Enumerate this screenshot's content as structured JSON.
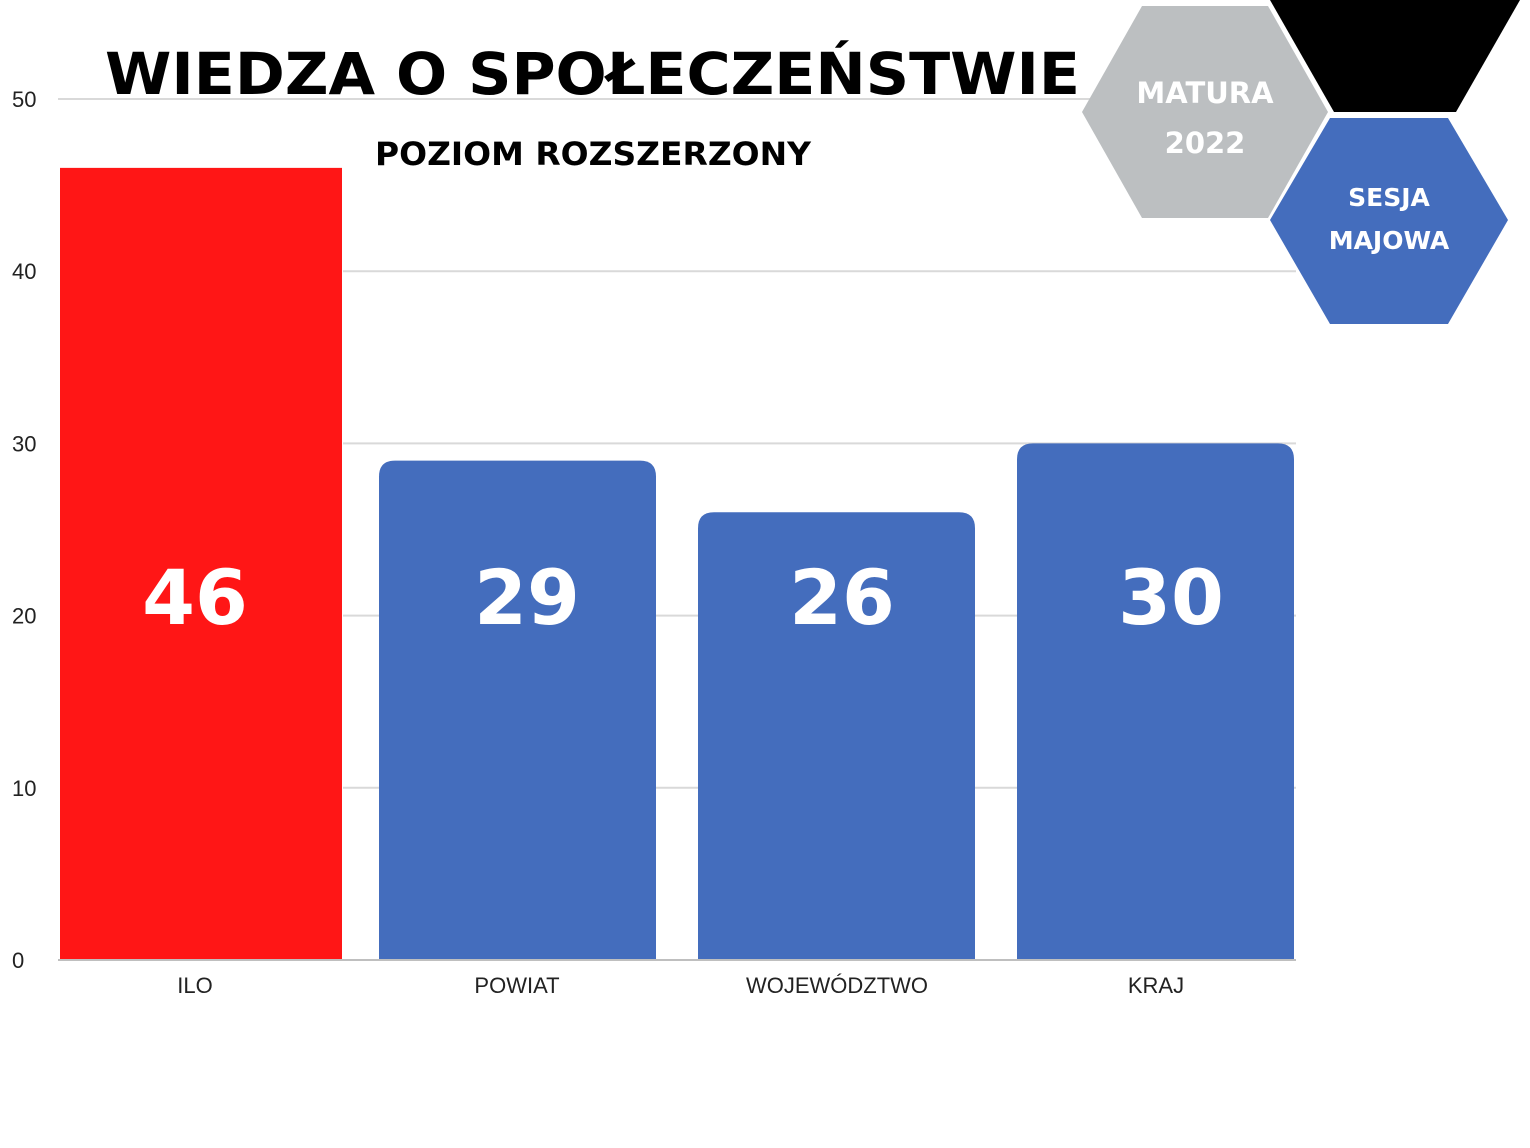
{
  "chart_data": {
    "type": "bar",
    "title": "WIEDZA O SPOŁECZEŃSTWIE",
    "subtitle": "POZIOM ROZSZERZONY",
    "categories": [
      "ILO",
      "POWIAT",
      "WOJEWÓDZTWO",
      "KRAJ"
    ],
    "values": [
      46,
      29,
      26,
      30
    ],
    "data_labels": [
      "46",
      "29",
      "26",
      "30"
    ],
    "bar_colors": [
      "#ff1616",
      "#446dbd",
      "#446dbd",
      "#446dbd"
    ],
    "ylim": [
      0,
      50
    ],
    "yticks": [
      "0",
      "10",
      "20",
      "30",
      "40",
      "50"
    ],
    "grid": true,
    "xlabel": "",
    "ylabel": ""
  },
  "badges": {
    "matura": {
      "line1": "MATURA",
      "line2": "2022",
      "color": "#bcbfc1"
    },
    "sesja": {
      "line1": "SESJA",
      "line2": "MAJOWA",
      "color": "#446dbd"
    },
    "black_hex_color": "#000000"
  },
  "colors": {
    "gridline": "#d9d9d9",
    "axis": "#bfbfbf"
  }
}
